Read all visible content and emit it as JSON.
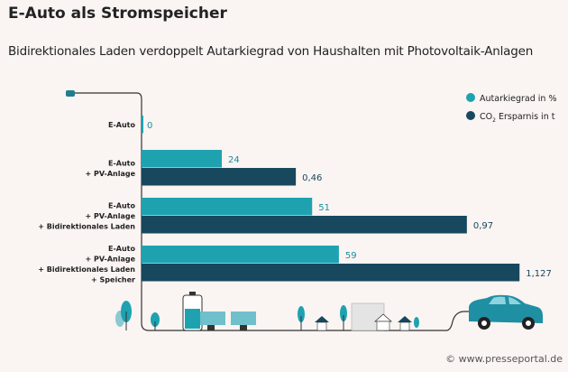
{
  "chart_data": {
    "type": "bar",
    "orientation": "horizontal",
    "title": "E-Auto als Stromspeicher",
    "subtitle": "Bidirektionales Laden verdoppelt Autarkiegrad von Haushalten mit Photovoltaik-Anlagen",
    "categories": [
      [
        "E-Auto"
      ],
      [
        "E-Auto",
        "+ PV-Anlage"
      ],
      [
        "E-Auto",
        "+ PV-Anlage",
        "+ Bidirektionales Laden"
      ],
      [
        "E-Auto",
        "+ PV-Anlage",
        "+ Bidirektionales Laden",
        "+ Speicher"
      ]
    ],
    "series": [
      {
        "name": "Autarkiegrad in %",
        "values": [
          0,
          24,
          51,
          59
        ],
        "labels": [
          "0",
          "24",
          "51",
          "59"
        ],
        "color": "#1fa2b0"
      },
      {
        "name": "CO2 Ersparnis in t",
        "values": [
          null,
          0.46,
          0.97,
          1.127
        ],
        "labels": [
          null,
          "0,46",
          "0,97",
          "1,127"
        ],
        "color": "#17485e"
      }
    ],
    "legend_position": "top-right",
    "grid": false
  },
  "legend": {
    "autarkie": "Autarkiegrad in %",
    "co2_prefix": "CO",
    "co2_sub": "2",
    "co2_suffix": " Ersparnis in t"
  },
  "footer": "© www.presseportal.de"
}
